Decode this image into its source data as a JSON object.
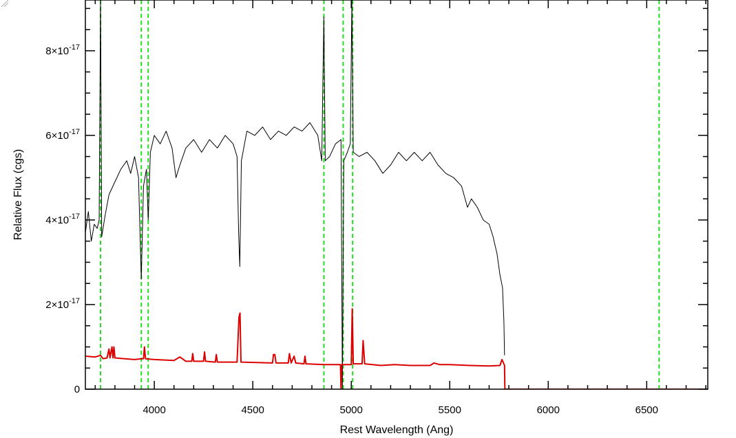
{
  "chart_data": {
    "type": "line",
    "xlabel": "Rest Wavelength (Ang)",
    "ylabel": "Relative Flux (cgs)",
    "xlim": [
      3650,
      6810
    ],
    "ylim": [
      0,
      9.2e-17
    ],
    "x_ticks": [
      4000,
      4500,
      5000,
      5500,
      6000,
      6500
    ],
    "x_tick_labels": [
      "4000",
      "4500",
      "5000",
      "5500",
      "6000",
      "6500"
    ],
    "y_ticks": [
      0,
      2e-17,
      4e-17,
      6e-17,
      8e-17
    ],
    "y_tick_labels": [
      {
        "mant": "0",
        "exp": ""
      },
      {
        "mant": "2×10",
        "exp": "-17"
      },
      {
        "mant": "4×10",
        "exp": "-17"
      },
      {
        "mant": "6×10",
        "exp": "-17"
      },
      {
        "mant": "8×10",
        "exp": "-17"
      }
    ],
    "grid": false,
    "reference_lines": {
      "color": "#22dd22",
      "style": "dashed",
      "x": [
        3727,
        3934,
        3969,
        4861,
        4959,
        5007,
        6563
      ]
    },
    "series": [
      {
        "color": "#000000",
        "points": [
          [
            3650,
            3.7e-17
          ],
          [
            3665,
            4.2e-17
          ],
          [
            3680,
            3.5e-17
          ],
          [
            3695,
            3.9e-17
          ],
          [
            3710,
            3.8e-17
          ],
          [
            3720,
            4e-17
          ],
          [
            3727,
            9.2e-17
          ],
          [
            3733,
            3.6e-17
          ],
          [
            3750,
            4.1e-17
          ],
          [
            3770,
            4.6e-17
          ],
          [
            3800,
            4.9e-17
          ],
          [
            3830,
            5.2e-17
          ],
          [
            3860,
            5.4e-17
          ],
          [
            3880,
            5.1e-17
          ],
          [
            3900,
            5.5e-17
          ],
          [
            3920,
            5e-17
          ],
          [
            3934,
            2.6e-17
          ],
          [
            3945,
            4.8e-17
          ],
          [
            3960,
            5.2e-17
          ],
          [
            3969,
            4e-17
          ],
          [
            3980,
            5.6e-17
          ],
          [
            4000,
            6e-17
          ],
          [
            4030,
            5.8e-17
          ],
          [
            4060,
            6.1e-17
          ],
          [
            4090,
            5.7e-17
          ],
          [
            4110,
            5e-17
          ],
          [
            4130,
            5.3e-17
          ],
          [
            4160,
            5.7e-17
          ],
          [
            4200,
            5.9e-17
          ],
          [
            4240,
            5.6e-17
          ],
          [
            4280,
            5.9e-17
          ],
          [
            4320,
            5.7e-17
          ],
          [
            4360,
            6e-17
          ],
          [
            4400,
            5.8e-17
          ],
          [
            4420,
            5.5e-17
          ],
          [
            4428,
            3.7e-17
          ],
          [
            4434,
            2.9e-17
          ],
          [
            4442,
            5.4e-17
          ],
          [
            4470,
            6.1e-17
          ],
          [
            4510,
            6e-17
          ],
          [
            4550,
            6.2e-17
          ],
          [
            4590,
            5.9e-17
          ],
          [
            4630,
            6.1e-17
          ],
          [
            4670,
            6e-17
          ],
          [
            4710,
            6.2e-17
          ],
          [
            4750,
            6.1e-17
          ],
          [
            4790,
            6.3e-17
          ],
          [
            4830,
            6e-17
          ],
          [
            4850,
            5.4e-17
          ],
          [
            4861,
            8.8e-17
          ],
          [
            4868,
            5.4e-17
          ],
          [
            4890,
            5.5e-17
          ],
          [
            4920,
            5.8e-17
          ],
          [
            4948,
            5.9e-17
          ],
          [
            4955,
            0.0
          ],
          [
            4962,
            5.4e-17
          ],
          [
            4980,
            5.6e-17
          ],
          [
            4995,
            5.8e-17
          ],
          [
            5003,
            9.2e-17
          ],
          [
            5010,
            5.6e-17
          ],
          [
            5040,
            5.5e-17
          ],
          [
            5080,
            5.6e-17
          ],
          [
            5120,
            5.4e-17
          ],
          [
            5160,
            5.1e-17
          ],
          [
            5200,
            5.3e-17
          ],
          [
            5240,
            5.6e-17
          ],
          [
            5280,
            5.4e-17
          ],
          [
            5320,
            5.6e-17
          ],
          [
            5360,
            5.4e-17
          ],
          [
            5400,
            5.6e-17
          ],
          [
            5440,
            5.3e-17
          ],
          [
            5480,
            5.1e-17
          ],
          [
            5520,
            5e-17
          ],
          [
            5560,
            4.8e-17
          ],
          [
            5590,
            4.3e-17
          ],
          [
            5610,
            4.5e-17
          ],
          [
            5640,
            4.3e-17
          ],
          [
            5670,
            4e-17
          ],
          [
            5700,
            3.9e-17
          ],
          [
            5720,
            3.6e-17
          ],
          [
            5740,
            3.2e-17
          ],
          [
            5755,
            2.7e-17
          ],
          [
            5768,
            2.4e-17
          ],
          [
            5775,
            1.6e-17
          ],
          [
            5778,
            8e-18
          ]
        ]
      },
      {
        "color": "#dd0000",
        "points": [
          [
            3650,
            7.8e-18
          ],
          [
            3700,
            7.6e-18
          ],
          [
            3727,
            8e-18
          ],
          [
            3740,
            7.2e-18
          ],
          [
            3760,
            7.4e-18
          ],
          [
            3770,
            9.5e-18
          ],
          [
            3775,
            7.4e-18
          ],
          [
            3785,
            1e-17
          ],
          [
            3790,
            7.4e-18
          ],
          [
            3795,
            1e-17
          ],
          [
            3800,
            7.4e-18
          ],
          [
            3850,
            7.2e-18
          ],
          [
            3900,
            7e-18
          ],
          [
            3934,
            7.2e-18
          ],
          [
            3945,
            7.2e-18
          ],
          [
            3950,
            1e-17
          ],
          [
            3955,
            7.2e-18
          ],
          [
            4000,
            7e-18
          ],
          [
            4100,
            6.8e-18
          ],
          [
            4130,
            7.6e-18
          ],
          [
            4160,
            6.6e-18
          ],
          [
            4190,
            6.6e-18
          ],
          [
            4195,
            8.4e-18
          ],
          [
            4200,
            6.6e-18
          ],
          [
            4250,
            6.6e-18
          ],
          [
            4255,
            8.8e-18
          ],
          [
            4260,
            6.6e-18
          ],
          [
            4310,
            6.4e-18
          ],
          [
            4315,
            8.2e-18
          ],
          [
            4320,
            6.4e-18
          ],
          [
            4420,
            6.4e-18
          ],
          [
            4430,
            1.7e-17
          ],
          [
            4435,
            1.8e-17
          ],
          [
            4440,
            6.4e-18
          ],
          [
            4600,
            6.2e-18
          ],
          [
            4605,
            8.2e-18
          ],
          [
            4612,
            8.2e-18
          ],
          [
            4618,
            6.2e-18
          ],
          [
            4680,
            6.2e-18
          ],
          [
            4686,
            8.4e-18
          ],
          [
            4695,
            6.2e-18
          ],
          [
            4710,
            7.8e-18
          ],
          [
            4718,
            6.2e-18
          ],
          [
            4760,
            6e-18
          ],
          [
            4765,
            7.8e-18
          ],
          [
            4770,
            6e-18
          ],
          [
            4861,
            5.8e-18
          ],
          [
            4945,
            5.8e-18
          ],
          [
            4948,
            0.0
          ],
          [
            4952,
            5.8e-18
          ],
          [
            5000,
            5.8e-18
          ],
          [
            5005,
            1.9e-17
          ],
          [
            5010,
            6e-18
          ],
          [
            5055,
            6e-18
          ],
          [
            5060,
            1.15e-17
          ],
          [
            5068,
            6e-18
          ],
          [
            5150,
            5.6e-18
          ],
          [
            5220,
            5.8e-18
          ],
          [
            5300,
            5.6e-18
          ],
          [
            5400,
            5.6e-18
          ],
          [
            5420,
            6.2e-18
          ],
          [
            5450,
            5.8e-18
          ],
          [
            5500,
            5.8e-18
          ],
          [
            5600,
            5.6e-18
          ],
          [
            5700,
            5.5e-18
          ],
          [
            5755,
            5.6e-18
          ],
          [
            5765,
            7e-18
          ],
          [
            5778,
            5.6e-18
          ],
          [
            5780,
            0.0
          ],
          [
            6810,
            0.0
          ]
        ]
      }
    ]
  }
}
